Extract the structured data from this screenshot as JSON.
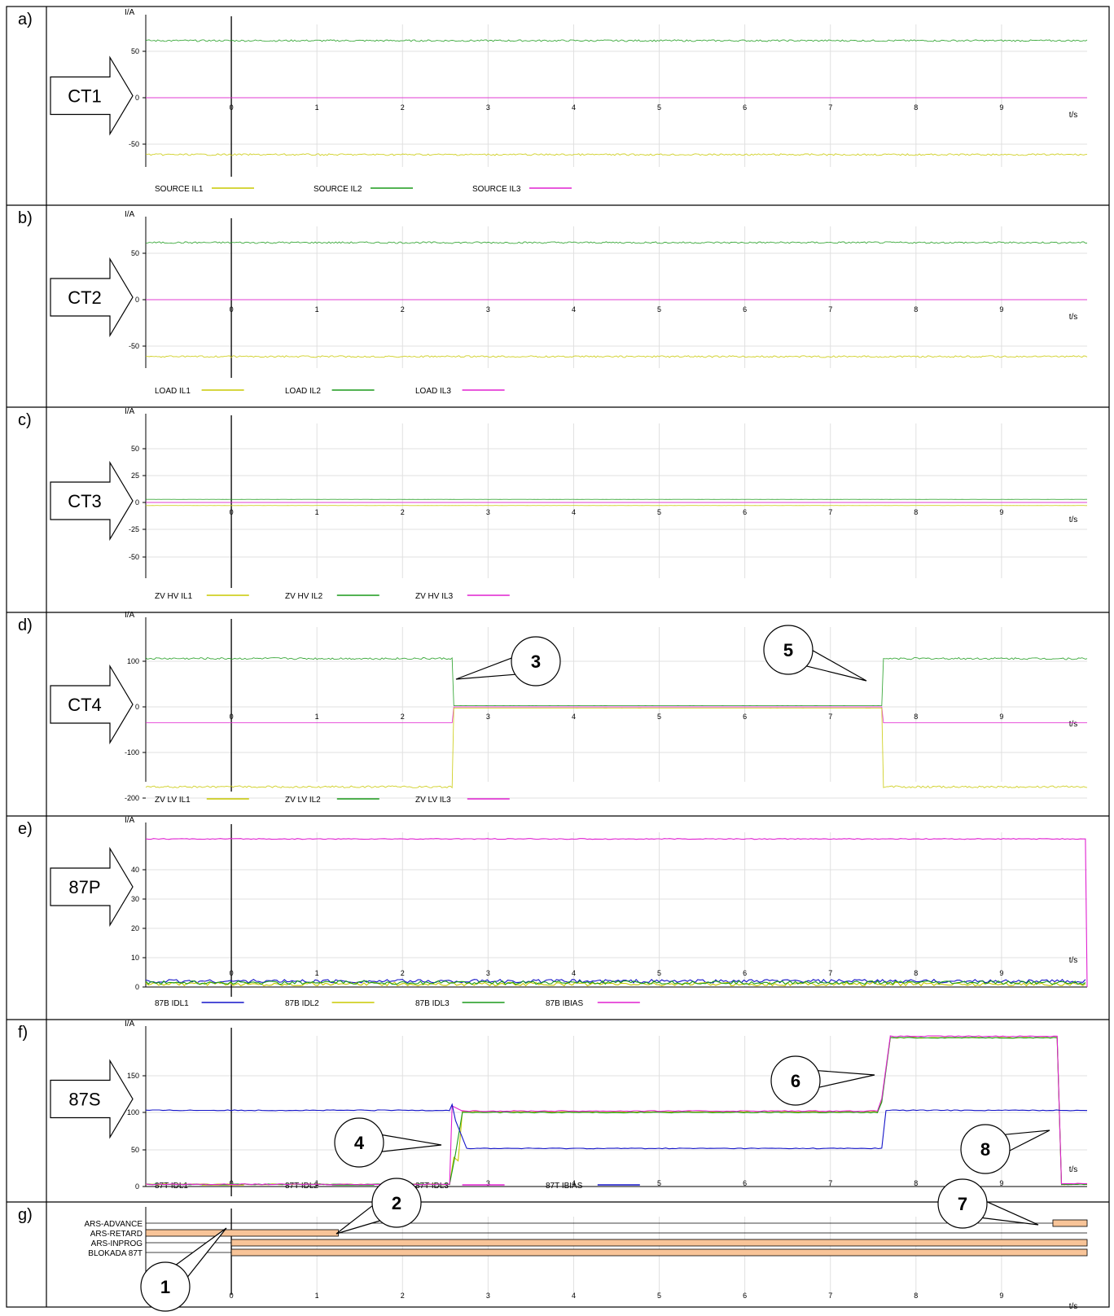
{
  "axis": {
    "y_unit": "I/A",
    "x_unit": "t/s",
    "x_ticks": [
      "0",
      "1",
      "2",
      "3",
      "4",
      "5",
      "6",
      "7",
      "8",
      "9"
    ]
  },
  "colors": {
    "yellow": "#c8c800",
    "green": "#1a9a1a",
    "magenta": "#e020d0",
    "blue": "#1414c8",
    "orange_bar": "#f8c498",
    "grid": "#e0e0e0"
  },
  "panels": [
    {
      "key": "a",
      "letter": "a)",
      "arrow_label": "CT1",
      "y_ticks": [
        "50",
        "0",
        "-50"
      ],
      "legend": [
        {
          "name": "SOURCE IL1",
          "color": "yellow"
        },
        {
          "name": "SOURCE IL2",
          "color": "green"
        },
        {
          "name": "SOURCE IL3",
          "color": "magenta"
        }
      ]
    },
    {
      "key": "b",
      "letter": "b)",
      "arrow_label": "CT2",
      "y_ticks": [
        "50",
        "0",
        "-50"
      ],
      "legend": [
        {
          "name": "LOAD IL1",
          "color": "yellow"
        },
        {
          "name": "LOAD IL2",
          "color": "green"
        },
        {
          "name": "LOAD IL3",
          "color": "magenta"
        }
      ]
    },
    {
      "key": "c",
      "letter": "c)",
      "arrow_label": "CT3",
      "y_ticks": [
        "50",
        "25",
        "0",
        "-25",
        "-50"
      ],
      "legend": [
        {
          "name": "ZV HV IL1",
          "color": "yellow"
        },
        {
          "name": "ZV HV IL2",
          "color": "green"
        },
        {
          "name": "ZV HV IL3",
          "color": "magenta"
        }
      ]
    },
    {
      "key": "d",
      "letter": "d)",
      "arrow_label": "CT4",
      "y_ticks": [
        "100",
        "0",
        "-100",
        "-200"
      ],
      "legend": [
        {
          "name": "ZV LV IL1",
          "color": "yellow"
        },
        {
          "name": "ZV LV IL2",
          "color": "green"
        },
        {
          "name": "ZV LV IL3",
          "color": "magenta"
        }
      ]
    },
    {
      "key": "e",
      "letter": "e)",
      "arrow_label": "87P",
      "y_ticks": [
        "40",
        "30",
        "20",
        "10",
        "0"
      ],
      "legend": [
        {
          "name": "87B IDL1",
          "color": "blue"
        },
        {
          "name": "87B IDL2",
          "color": "yellow"
        },
        {
          "name": "87B IDL3",
          "color": "green"
        },
        {
          "name": "87B IBIAS",
          "color": "magenta"
        }
      ]
    },
    {
      "key": "f",
      "letter": "f)",
      "arrow_label": "87S",
      "y_ticks": [
        "150",
        "100",
        "50",
        "0"
      ],
      "legend": [
        {
          "name": "87T IDL1",
          "color": "yellow"
        },
        {
          "name": "87T IDL2",
          "color": "green"
        },
        {
          "name": "87T IDL3",
          "color": "magenta"
        },
        {
          "name": "87T IBIAS",
          "color": "blue"
        }
      ]
    },
    {
      "key": "g",
      "letter": "g)",
      "arrow_label": "",
      "y_ticks": [],
      "legend": []
    }
  ],
  "callouts": [
    "1",
    "2",
    "3",
    "4",
    "5",
    "6",
    "7",
    "8"
  ],
  "chart_data": [
    {
      "type": "line",
      "panel": "a",
      "ylim": [
        -75,
        75
      ],
      "series": [
        {
          "name": "SOURCE IL1",
          "values": "sinusoid, amplitude ~72 A, t=-1..10 s"
        },
        {
          "name": "SOURCE IL2",
          "values": "sinusoid, amplitude ~72 A, t=-1..10 s"
        },
        {
          "name": "SOURCE IL3",
          "values": "sinusoid, amplitude ~72 A, t=-1..10 s"
        }
      ],
      "amplitude": 72
    },
    {
      "type": "line",
      "panel": "b",
      "ylim": [
        -75,
        75
      ],
      "series": [
        {
          "name": "LOAD IL1"
        },
        {
          "name": "LOAD IL2"
        },
        {
          "name": "LOAD IL3"
        }
      ],
      "amplitude": 72
    },
    {
      "type": "line",
      "panel": "c",
      "ylim": [
        -75,
        75
      ],
      "series": [
        {
          "name": "ZV HV IL1"
        },
        {
          "name": "ZV HV IL2"
        },
        {
          "name": "ZV HV IL3"
        }
      ],
      "amplitude": 2
    },
    {
      "type": "line",
      "panel": "d",
      "ylim": [
        -210,
        150
      ],
      "series": [
        {
          "name": "ZV LV IL1"
        },
        {
          "name": "ZV LV IL2"
        },
        {
          "name": "ZV LV IL3"
        }
      ],
      "segments": [
        {
          "t": [
            -1,
            2.6
          ],
          "max": 130,
          "min": -200
        },
        {
          "t": [
            2.6,
            7.6
          ],
          "max": 3,
          "min": -3
        },
        {
          "t": [
            7.6,
            10
          ],
          "max": 130,
          "min": -200
        }
      ]
    },
    {
      "type": "line",
      "panel": "e",
      "ylim": [
        0,
        52
      ],
      "series": [
        {
          "name": "87B IDL1",
          "value": 2
        },
        {
          "name": "87B IDL2",
          "value": 1
        },
        {
          "name": "87B IDL3",
          "value": 1.5
        },
        {
          "name": "87B IBIAS",
          "value": 50.5
        }
      ]
    },
    {
      "type": "line",
      "panel": "f",
      "ylim": [
        0,
        210
      ],
      "series": [
        {
          "name": "87T IDL1",
          "points": [
            [
              -1,
              3
            ],
            [
              2.55,
              3
            ],
            [
              2.6,
              40
            ],
            [
              2.65,
              35
            ],
            [
              2.7,
              102
            ],
            [
              7.55,
              102
            ],
            [
              7.6,
              118
            ],
            [
              7.7,
              203
            ],
            [
              9.65,
              203
            ],
            [
              9.7,
              3
            ],
            [
              10,
              3
            ]
          ]
        },
        {
          "name": "87T IDL2",
          "points": [
            [
              -1,
              3
            ],
            [
              2.55,
              3
            ],
            [
              2.62,
              45
            ],
            [
              2.7,
              101
            ],
            [
              7.55,
              101
            ],
            [
              7.6,
              115
            ],
            [
              7.7,
              203
            ],
            [
              9.65,
              203
            ],
            [
              9.7,
              3
            ],
            [
              10,
              3
            ]
          ]
        },
        {
          "name": "87T IDL3",
          "points": [
            [
              -1,
              3
            ],
            [
              2.55,
              3
            ],
            [
              2.58,
              110
            ],
            [
              2.7,
              103
            ],
            [
              7.55,
              103
            ],
            [
              7.6,
              120
            ],
            [
              7.7,
              205
            ],
            [
              9.65,
              205
            ],
            [
              9.7,
              4
            ],
            [
              10,
              4
            ]
          ]
        },
        {
          "name": "87T IBIAS",
          "points": [
            [
              -1,
              104
            ],
            [
              2.55,
              104
            ],
            [
              2.58,
              112
            ],
            [
              2.62,
              90
            ],
            [
              2.75,
              52
            ],
            [
              7.6,
              52
            ],
            [
              7.65,
              104
            ],
            [
              10,
              104
            ]
          ]
        }
      ]
    },
    {
      "type": "bar",
      "panel": "g",
      "categories": [
        "ARS-ADVANCE",
        "ARS-RETARD",
        "ARS-INPROG",
        "BLOKADA 87T"
      ],
      "intervals": [
        [
          [
            9.6,
            10
          ]
        ],
        [
          [
            -1,
            1.25
          ]
        ],
        [
          [
            0,
            10
          ]
        ],
        [
          [
            0,
            10
          ]
        ]
      ]
    }
  ]
}
